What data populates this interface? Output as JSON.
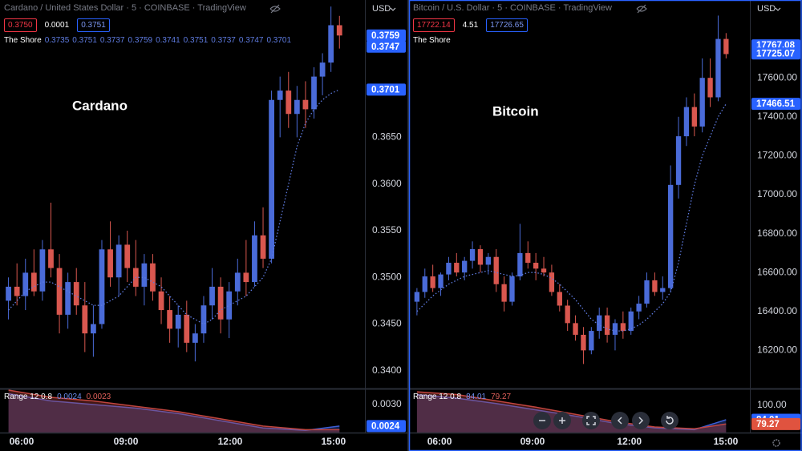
{
  "chart_data": [
    {
      "type": "candlestick",
      "symbol": "Cardano / United States Dollar · 5 · COINBASE · TradingView",
      "quote": [
        "0.3750",
        "0.0001",
        "0.3751"
      ],
      "annotation": "Cardano",
      "currency": "USD",
      "up_color": "#4a6bd8",
      "down_color": "#d9574f",
      "open": [
        0.3475,
        0.349,
        0.348,
        0.3505,
        0.3485,
        0.353,
        0.351,
        0.346,
        0.3495,
        0.347,
        0.344,
        0.345,
        0.353,
        0.35,
        0.3535,
        0.351,
        0.349,
        0.3515,
        0.3485,
        0.3465,
        0.3445,
        0.346,
        0.343,
        0.344,
        0.347,
        0.349,
        0.3455,
        0.3485,
        0.3505,
        0.3495,
        0.3545,
        0.352,
        0.369,
        0.37,
        0.3675,
        0.369,
        0.368,
        0.3715,
        0.373,
        0.377
      ],
      "high": [
        0.35,
        0.3515,
        0.352,
        0.353,
        0.354,
        0.358,
        0.3525,
        0.3505,
        0.351,
        0.3495,
        0.347,
        0.354,
        0.356,
        0.3545,
        0.355,
        0.354,
        0.3525,
        0.3525,
        0.35,
        0.348,
        0.347,
        0.3475,
        0.345,
        0.348,
        0.351,
        0.35,
        0.3495,
        0.352,
        0.354,
        0.356,
        0.3575,
        0.37,
        0.3715,
        0.372,
        0.3705,
        0.371,
        0.3725,
        0.374,
        0.379,
        0.378
      ],
      "low": [
        0.3455,
        0.347,
        0.3465,
        0.348,
        0.3475,
        0.35,
        0.344,
        0.3445,
        0.346,
        0.342,
        0.3415,
        0.3445,
        0.349,
        0.348,
        0.3495,
        0.348,
        0.347,
        0.3475,
        0.345,
        0.343,
        0.3425,
        0.342,
        0.341,
        0.343,
        0.3455,
        0.344,
        0.3435,
        0.347,
        0.348,
        0.349,
        0.351,
        0.3515,
        0.365,
        0.366,
        0.365,
        0.366,
        0.367,
        0.3695,
        0.372,
        0.3745
      ],
      "close": [
        0.349,
        0.348,
        0.3505,
        0.3485,
        0.353,
        0.351,
        0.346,
        0.3495,
        0.347,
        0.344,
        0.345,
        0.353,
        0.35,
        0.3535,
        0.351,
        0.349,
        0.3515,
        0.3485,
        0.3465,
        0.3445,
        0.346,
        0.343,
        0.344,
        0.347,
        0.349,
        0.3455,
        0.3485,
        0.3505,
        0.3495,
        0.3545,
        0.352,
        0.369,
        0.37,
        0.3675,
        0.369,
        0.368,
        0.3715,
        0.373,
        0.377,
        0.3759
      ],
      "xlim": [
        -1,
        42
      ],
      "xticks": [
        {
          "value": 1.55,
          "label": "06:00"
        },
        {
          "value": 13.84,
          "label": "09:00"
        },
        {
          "value": 26.12,
          "label": "12:00"
        },
        {
          "value": 38.3,
          "label": "15:00"
        }
      ],
      "ylim": [
        0.3381,
        0.3797
      ],
      "yticks": [
        {
          "value": 0.34,
          "label": "0.3400"
        },
        {
          "value": 0.345,
          "label": "0.3450"
        },
        {
          "value": 0.35,
          "label": "0.3500"
        },
        {
          "value": 0.355,
          "label": "0.3550"
        },
        {
          "value": 0.36,
          "label": "0.3600"
        },
        {
          "value": 0.365,
          "label": "0.3650"
        }
      ],
      "price_labels": [
        {
          "value": 0.3759,
          "label": "0.3759"
        },
        {
          "value": 0.3747,
          "label": "0.3747"
        },
        {
          "value": 0.3701,
          "label": "0.3701"
        }
      ],
      "overlay": {
        "name": "The Shore",
        "color": "#5e7be0",
        "legend_values": [
          "0.3735",
          "0.3751",
          "0.3737",
          "0.3759",
          "0.3741",
          "0.3751",
          "0.3737",
          "0.3747",
          "0.3701"
        ],
        "values": [
          0.3465,
          0.3475,
          0.3485,
          0.349,
          0.3495,
          0.3495,
          0.349,
          0.3485,
          0.348,
          0.3475,
          0.347,
          0.347,
          0.3475,
          0.348,
          0.349,
          0.35,
          0.35,
          0.3495,
          0.349,
          0.348,
          0.347,
          0.346,
          0.3455,
          0.345,
          0.3455,
          0.3465,
          0.347,
          0.3475,
          0.348,
          0.349,
          0.35,
          0.352,
          0.356,
          0.36,
          0.364,
          0.3665,
          0.368,
          0.369,
          0.3697,
          0.3701
        ]
      },
      "indicator": {
        "name": "Range 12 0.8",
        "x": [
          0,
          5,
          10,
          15,
          20,
          25,
          30,
          35,
          39
        ],
        "ylim": [
          0.00222,
          0.0034
        ],
        "yticks": [
          {
            "value": 0.003,
            "label": "0.0030"
          }
        ],
        "series": [
          {
            "color": "#3c5fd6",
            "legend_value": "0.0024",
            "values": [
              0.0033,
              0.0031,
              0.003,
              0.0029,
              0.00275,
              0.00255,
              0.00235,
              0.00228,
              0.0024
            ]
          },
          {
            "color": "#c0453f",
            "legend_value": "0.0023",
            "values": [
              0.0034,
              0.0032,
              0.0031,
              0.00295,
              0.0028,
              0.0026,
              0.0024,
              0.0023,
              0.0023
            ]
          }
        ],
        "price_labels": [
          {
            "value": 0.0024,
            "label": "0.0024"
          }
        ]
      }
    },
    {
      "type": "candlestick",
      "symbol": "Bitcoin / U.S. Dollar · 5 · COINBASE · TradingView",
      "quote": [
        "17722.14",
        "4.51",
        "17726.65"
      ],
      "annotation": "Bitcoin",
      "currency": "USD",
      "up_color": "#4a6bd8",
      "down_color": "#d9574f",
      "open": [
        16450,
        16500,
        16580,
        16520,
        16590,
        16650,
        16600,
        16660,
        16720,
        16640,
        16680,
        16540,
        16450,
        16580,
        16700,
        16650,
        16620,
        16600,
        16500,
        16430,
        16340,
        16280,
        16200,
        16300,
        16380,
        16280,
        16340,
        16300,
        16400,
        16440,
        16560,
        16500,
        16520,
        17050,
        17300,
        17450,
        17350,
        17600,
        17500,
        17800
      ],
      "high": [
        16520,
        16620,
        16640,
        16600,
        16680,
        16700,
        16680,
        16760,
        16740,
        16700,
        16720,
        16580,
        16600,
        16850,
        16760,
        16700,
        16680,
        16640,
        16540,
        16460,
        16380,
        16320,
        16320,
        16420,
        16420,
        16360,
        16400,
        16420,
        16480,
        16600,
        16600,
        16580,
        17150,
        17400,
        17500,
        17520,
        17700,
        17700,
        17920,
        17830
      ],
      "low": [
        16380,
        16470,
        16500,
        16480,
        16560,
        16580,
        16560,
        16620,
        16600,
        16590,
        16500,
        16400,
        16430,
        16560,
        16620,
        16560,
        16580,
        16480,
        16400,
        16300,
        16250,
        16130,
        16180,
        16260,
        16240,
        16200,
        16260,
        16280,
        16360,
        16420,
        16480,
        16460,
        16500,
        16980,
        17250,
        17300,
        17320,
        17450,
        17480,
        17700
      ],
      "close": [
        16500,
        16580,
        16520,
        16590,
        16650,
        16600,
        16660,
        16720,
        16640,
        16680,
        16540,
        16450,
        16580,
        16700,
        16650,
        16620,
        16600,
        16500,
        16430,
        16340,
        16280,
        16200,
        16300,
        16380,
        16280,
        16340,
        16300,
        16400,
        16440,
        16560,
        16500,
        16520,
        17050,
        17300,
        17450,
        17350,
        17600,
        17500,
        17800,
        17722.14
      ],
      "xlim": [
        -1,
        42
      ],
      "xticks": [
        {
          "value": 2.85,
          "label": "06:00"
        },
        {
          "value": 14.58,
          "label": "09:00"
        },
        {
          "value": 26.8,
          "label": "12:00"
        },
        {
          "value": 38.96,
          "label": "15:00"
        }
      ],
      "ylim": [
        16004,
        18000
      ],
      "yticks": [
        {
          "value": 16200,
          "label": "16200.00"
        },
        {
          "value": 16400,
          "label": "16400.00"
        },
        {
          "value": 16600,
          "label": "16600.00"
        },
        {
          "value": 16800,
          "label": "16800.00"
        },
        {
          "value": 17000,
          "label": "17000.00"
        },
        {
          "value": 17200,
          "label": "17200.00"
        },
        {
          "value": 17400,
          "label": "17400.00"
        },
        {
          "value": 17600,
          "label": "17600.00"
        }
      ],
      "price_labels": [
        {
          "value": 17767.08,
          "label": "17767.08"
        },
        {
          "value": 17725.07,
          "label": "17725.07"
        },
        {
          "value": 17466.51,
          "label": "17466.51"
        }
      ],
      "overlay": {
        "name": "The Shore",
        "color": "#5e7be0",
        "values": [
          16400,
          16440,
          16480,
          16510,
          16540,
          16560,
          16580,
          16590,
          16600,
          16610,
          16600,
          16590,
          16580,
          16585,
          16600,
          16600,
          16590,
          16570,
          16540,
          16500,
          16460,
          16410,
          16360,
          16330,
          16310,
          16300,
          16300,
          16310,
          16330,
          16360,
          16400,
          16440,
          16500,
          16650,
          16850,
          17050,
          17200,
          17300,
          17400,
          17466.51
        ]
      },
      "indicator": {
        "name": "Range 12 0.8",
        "x": [
          0,
          5,
          10,
          15,
          20,
          25,
          30,
          35,
          39
        ],
        "ylim": [
          69.8,
          116.9
        ],
        "yticks": [
          {
            "value": 100,
            "label": "100.00"
          }
        ],
        "series": [
          {
            "color": "#3c5fd6",
            "legend_value": "84.01",
            "values": [
              112,
              108,
              102,
              95,
              88,
              80,
              75,
              73,
              84.01
            ]
          },
          {
            "color": "#c0453f",
            "legend_value": "79.27",
            "values": [
              115,
              112,
              105,
              98,
              90,
              82,
              76,
              74,
              79.27
            ]
          }
        ],
        "price_labels": [
          {
            "value": 84.01,
            "label": "84.01"
          },
          {
            "value": 79.27,
            "label": "79.27"
          }
        ]
      }
    }
  ]
}
